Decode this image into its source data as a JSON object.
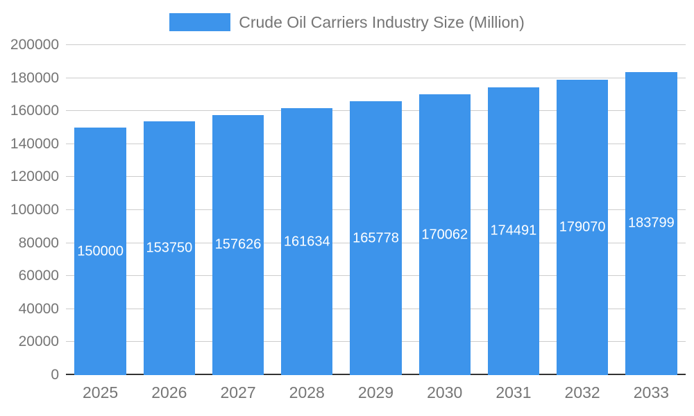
{
  "chart_data": {
    "type": "bar",
    "title": "Crude Oil Carriers Industry Size (Million)",
    "categories": [
      "2025",
      "2026",
      "2027",
      "2028",
      "2029",
      "2030",
      "2031",
      "2032",
      "2033"
    ],
    "values": [
      150000,
      153750,
      157626,
      161634,
      165778,
      170062,
      174491,
      179070,
      183799
    ],
    "bar_labels": [
      "150000",
      "153750",
      "157626",
      "161634",
      "165778",
      "170062",
      "174491",
      "179070",
      "183799"
    ],
    "xlabel": "",
    "ylabel": "",
    "ylim": [
      0,
      200000
    ],
    "ytick_step": 20000,
    "ytick_labels": [
      "0",
      "20000",
      "40000",
      "60000",
      "80000",
      "100000",
      "120000",
      "140000",
      "160000",
      "180000",
      "200000"
    ],
    "grid": true,
    "legend_position": "top"
  },
  "colors": {
    "bar": "#3d94eb",
    "axis_text": "#757575",
    "gridline": "#cccccc",
    "baseline": "#333333",
    "bar_label": "#ffffff",
    "background": "#ffffff"
  }
}
